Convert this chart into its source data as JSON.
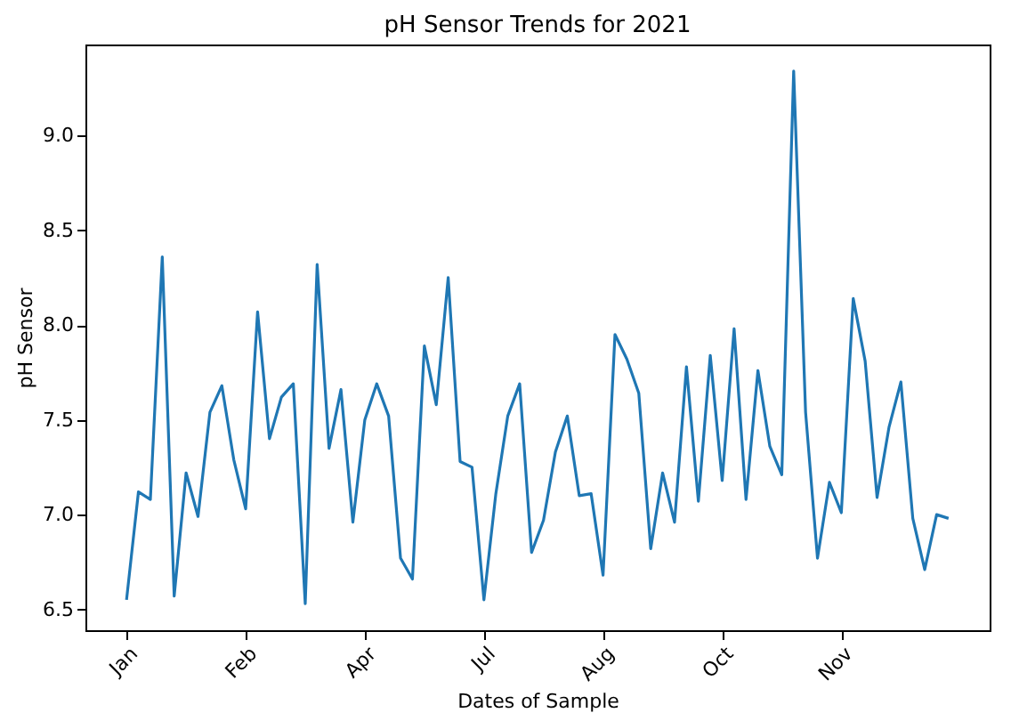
{
  "chart_data": {
    "type": "line",
    "title": "pH Sensor Trends for 2021",
    "xlabel": "Dates of Sample",
    "ylabel": "pH Sensor",
    "categories": [
      "Jan",
      null,
      null,
      null,
      null,
      null,
      null,
      null,
      null,
      null,
      "Feb",
      null,
      null,
      null,
      null,
      null,
      null,
      null,
      null,
      null,
      "Apr",
      null,
      null,
      null,
      null,
      null,
      null,
      null,
      null,
      null,
      "Jul",
      null,
      null,
      null,
      null,
      null,
      null,
      null,
      null,
      null,
      "Aug",
      null,
      null,
      null,
      null,
      null,
      null,
      null,
      null,
      null,
      "Oct",
      null,
      null,
      null,
      null,
      null,
      null,
      null,
      null,
      null,
      "Nov",
      null,
      null,
      null,
      null,
      null,
      null,
      null,
      null,
      null
    ],
    "series": [
      {
        "color": "#1f77b4",
        "values": [
          6.55,
          7.12,
          7.08,
          8.36,
          6.57,
          7.22,
          6.99,
          7.54,
          7.68,
          7.29,
          7.03,
          8.07,
          7.4,
          7.62,
          7.69,
          6.53,
          8.32,
          7.35,
          7.66,
          6.96,
          7.5,
          7.69,
          7.52,
          6.77,
          6.66,
          7.89,
          7.58,
          8.25,
          7.28,
          7.25,
          6.55,
          7.11,
          7.52,
          7.69,
          6.8,
          6.97,
          7.33,
          7.52,
          7.1,
          7.11,
          6.68,
          7.95,
          7.82,
          7.64,
          6.82,
          7.22,
          6.96,
          7.78,
          7.07,
          7.84,
          7.18,
          7.98,
          7.08,
          7.76,
          7.36,
          7.21,
          9.34,
          7.54,
          6.77,
          7.17,
          7.01,
          8.14,
          7.81,
          7.09,
          7.46,
          7.7,
          6.98,
          6.71,
          7.0,
          6.98
        ]
      }
    ],
    "ylim": [
      6.39,
      9.48
    ],
    "yticks": [
      6.5,
      {
        "value": 7,
        "label": "7.0"
      },
      7.5,
      {
        "value": 8,
        "label": "8.0"
      },
      8.5,
      {
        "value": 9,
        "label": "9.0"
      }
    ],
    "grid": false,
    "marker": "none",
    "line_style": "solid"
  }
}
